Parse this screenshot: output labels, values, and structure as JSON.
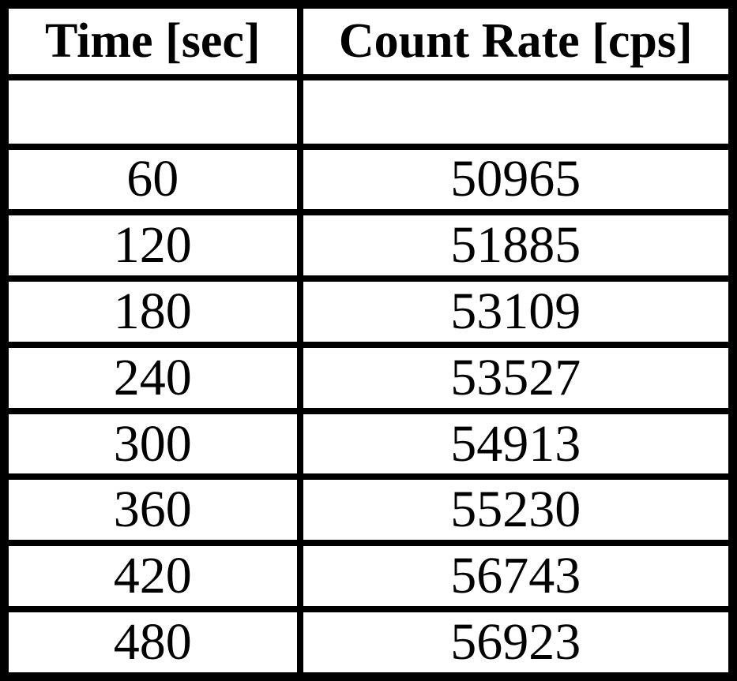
{
  "page": {
    "background_color": "#ffffff",
    "border_color": "#000000",
    "text_color": "#000000"
  },
  "table": {
    "headers": [
      "Time [sec]",
      "Count Rate [cps]"
    ],
    "rows": [
      [
        "",
        ""
      ],
      [
        "60",
        "50965"
      ],
      [
        "120",
        "51885"
      ],
      [
        "180",
        "53109"
      ],
      [
        "240",
        "53527"
      ],
      [
        "300",
        "54913"
      ],
      [
        "360",
        "55230"
      ],
      [
        "420",
        "56743"
      ],
      [
        "480",
        "56923"
      ]
    ]
  },
  "chart_data": {
    "type": "table",
    "columns": [
      "Time [sec]",
      "Count Rate [cps]"
    ],
    "x_label": "Time [sec]",
    "y_label": "Count Rate [cps]",
    "x": [
      60,
      120,
      180,
      240,
      300,
      360,
      420,
      480
    ],
    "values": [
      50965,
      51885,
      53109,
      53527,
      54913,
      55230,
      56743,
      56923
    ],
    "title": "",
    "notes": "grid table with bold header row and one blank spacer row below header"
  }
}
